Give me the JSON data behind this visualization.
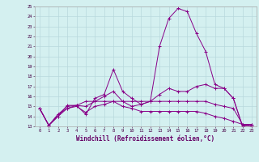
{
  "xlabel": "Windchill (Refroidissement éolien,°C)",
  "bg_color": "#d4f0f0",
  "grid_color": "#b8d8dc",
  "line_color": "#880088",
  "xlim": [
    -0.5,
    23.5
  ],
  "ylim": [
    13,
    25
  ],
  "xticks": [
    0,
    1,
    2,
    3,
    4,
    5,
    6,
    7,
    8,
    9,
    10,
    11,
    12,
    13,
    14,
    15,
    16,
    17,
    18,
    19,
    20,
    21,
    22,
    23
  ],
  "yticks": [
    13,
    14,
    15,
    16,
    17,
    18,
    19,
    20,
    21,
    22,
    23,
    24,
    25
  ],
  "series": [
    [
      14.8,
      13.1,
      14.2,
      15.0,
      15.1,
      14.2,
      15.8,
      16.2,
      18.7,
      16.5,
      15.8,
      15.2,
      15.5,
      21.0,
      23.8,
      24.8,
      24.5,
      22.3,
      20.5,
      17.2,
      16.8,
      15.8,
      13.0,
      13.0
    ],
    [
      14.8,
      13.1,
      14.0,
      15.1,
      15.1,
      15.0,
      15.5,
      16.0,
      16.5,
      15.5,
      15.0,
      15.2,
      15.5,
      16.2,
      16.8,
      16.5,
      16.5,
      17.0,
      17.2,
      16.8,
      16.8,
      15.8,
      13.0,
      13.2
    ],
    [
      14.8,
      13.1,
      14.0,
      14.8,
      15.0,
      14.4,
      15.0,
      15.2,
      15.5,
      15.0,
      14.8,
      14.5,
      14.5,
      14.5,
      14.5,
      14.5,
      14.5,
      14.5,
      14.3,
      14.0,
      13.8,
      13.5,
      13.2,
      13.0
    ],
    [
      14.8,
      13.1,
      14.2,
      14.8,
      15.1,
      15.5,
      15.5,
      15.5,
      15.5,
      15.5,
      15.5,
      15.5,
      15.5,
      15.5,
      15.5,
      15.5,
      15.5,
      15.5,
      15.5,
      15.2,
      15.0,
      14.8,
      13.2,
      13.2
    ]
  ]
}
